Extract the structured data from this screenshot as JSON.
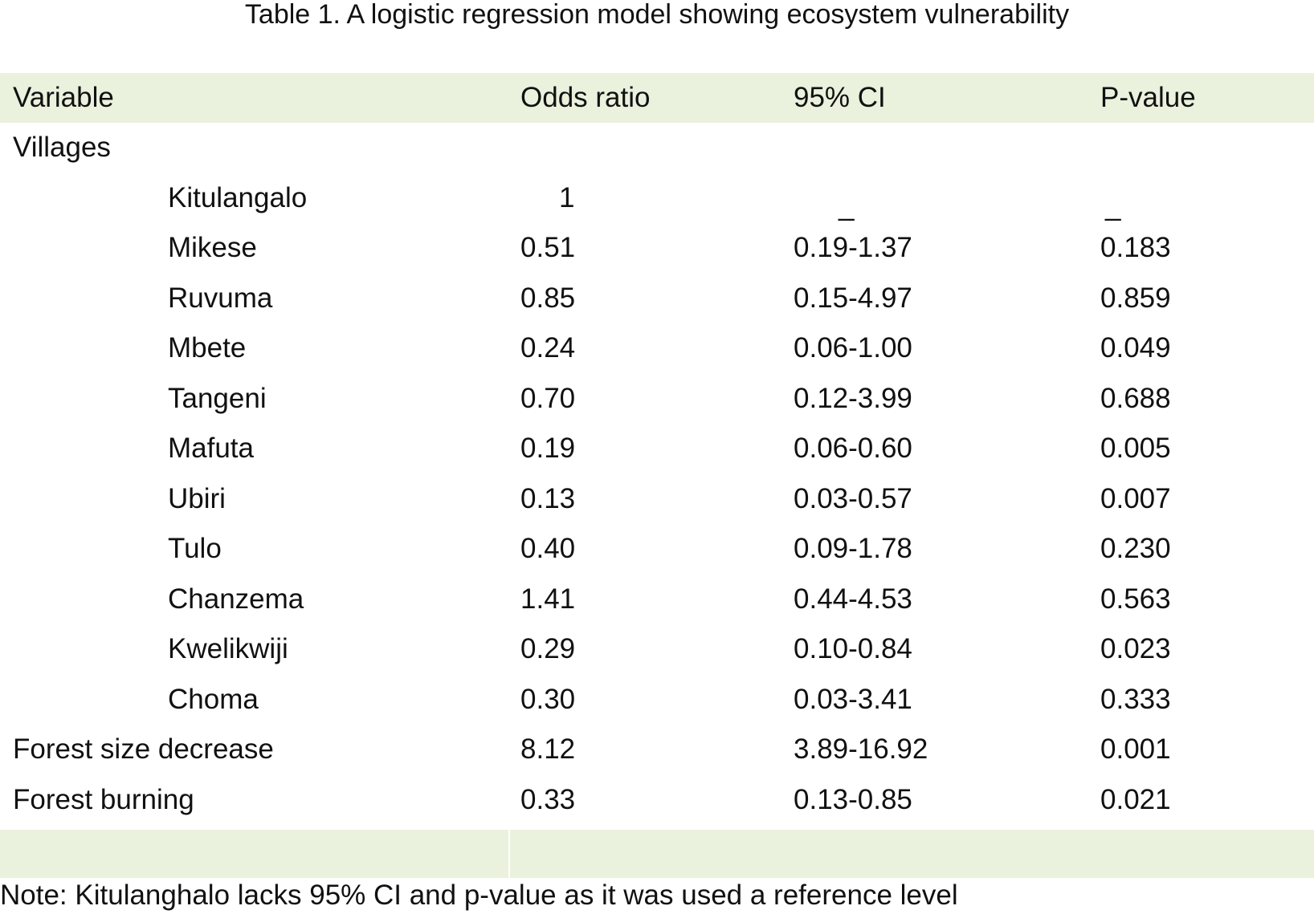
{
  "caption": "Table 1. A logistic regression model showing ecosystem vulnerability",
  "table": {
    "headers": [
      "Variable",
      "Odds ratio",
      "95% CI",
      "P-value"
    ],
    "group_label": "Villages",
    "villages": [
      {
        "name": "Kitulangalo",
        "odds_ratio": "1",
        "ci": "_",
        "p": "_"
      },
      {
        "name": "Mikese",
        "odds_ratio": "0.51",
        "ci": "0.19-1.37",
        "p": "0.183"
      },
      {
        "name": "Ruvuma",
        "odds_ratio": "0.85",
        "ci": "0.15-4.97",
        "p": "0.859"
      },
      {
        "name": "Mbete",
        "odds_ratio": "0.24",
        "ci": "0.06-1.00",
        "p": "0.049"
      },
      {
        "name": "Tangeni",
        "odds_ratio": "0.70",
        "ci": "0.12-3.99",
        "p": "0.688"
      },
      {
        "name": "Mafuta",
        "odds_ratio": "0.19",
        "ci": "0.06-0.60",
        "p": "0.005"
      },
      {
        "name": "Ubiri",
        "odds_ratio": "0.13",
        "ci": "0.03-0.57",
        "p": "0.007"
      },
      {
        "name": "Tulo",
        "odds_ratio": "0.40",
        "ci": "0.09-1.78",
        "p": "0.230"
      },
      {
        "name": "Chanzema",
        "odds_ratio": "1.41",
        "ci": "0.44-4.53",
        "p": "0.563"
      },
      {
        "name": "Kwelikwiji",
        "odds_ratio": "0.29",
        "ci": "0.10-0.84",
        "p": "0.023"
      },
      {
        "name": "Choma",
        "odds_ratio": "0.30",
        "ci": "0.03-3.41",
        "p": "0.333"
      }
    ],
    "others": [
      {
        "name": "Forest size decrease",
        "odds_ratio": "8.12",
        "ci": "3.89-16.92",
        "p": "0.001"
      },
      {
        "name": "Forest burning",
        "odds_ratio": "0.33",
        "ci": "0.13-0.85",
        "p": "0.021"
      }
    ]
  },
  "note": "Note: Kitulanghalo lacks 95% CI and p-value as it was used a reference level",
  "colors": {
    "header_bg": "#eaf1dd",
    "text": "#111111"
  }
}
